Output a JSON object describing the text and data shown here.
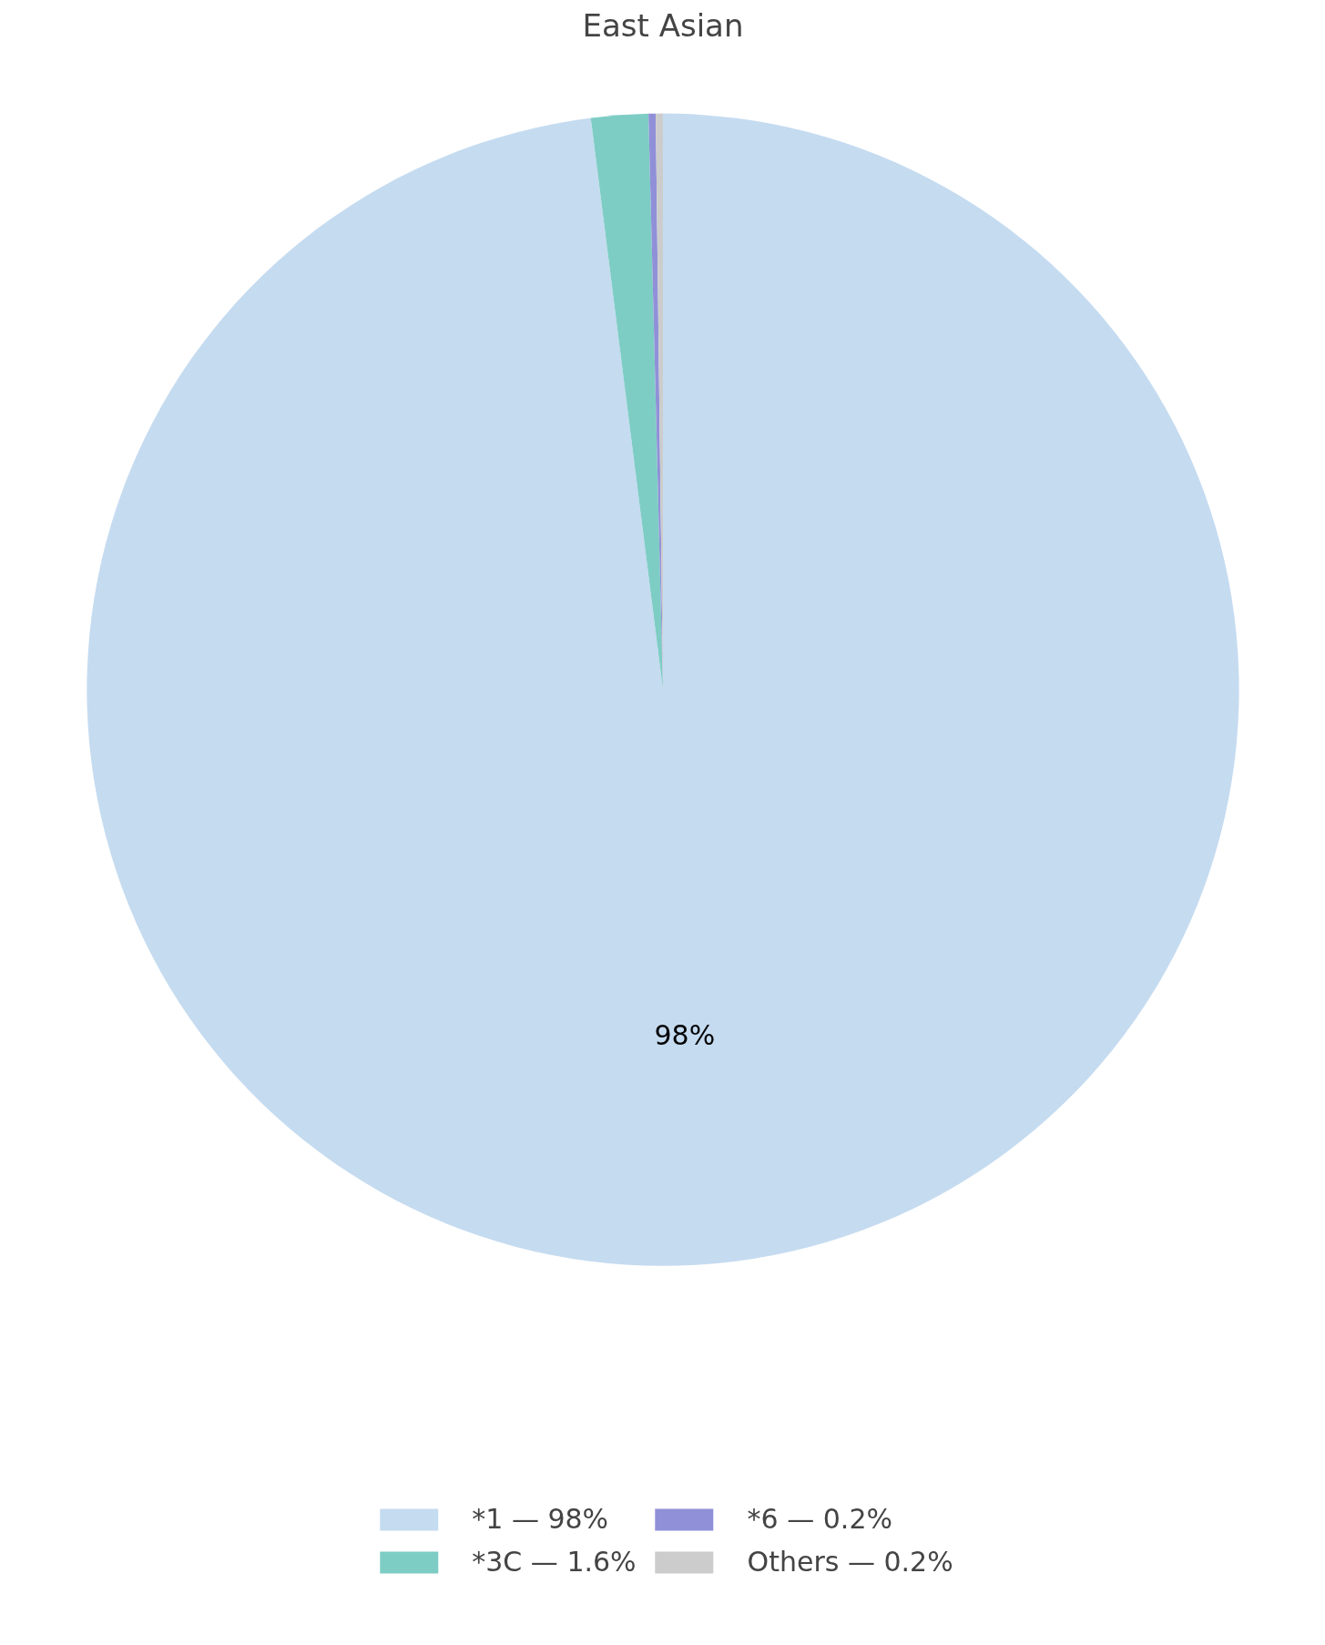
{
  "chart_data": {
    "type": "pie",
    "title": "East Asian",
    "categories": [
      "*1 — 98%",
      "*3C — 1.6%",
      "*6 — 0.2%",
      "Others — 0.2%"
    ],
    "values": [
      98,
      1.6,
      0.2,
      0.2
    ],
    "colors": [
      "#c5dbf0",
      "#7ecdc5",
      "#9090d8",
      "#cccccc"
    ],
    "value_labels": [
      "98%",
      null,
      null,
      null
    ],
    "legend": "bottom"
  }
}
